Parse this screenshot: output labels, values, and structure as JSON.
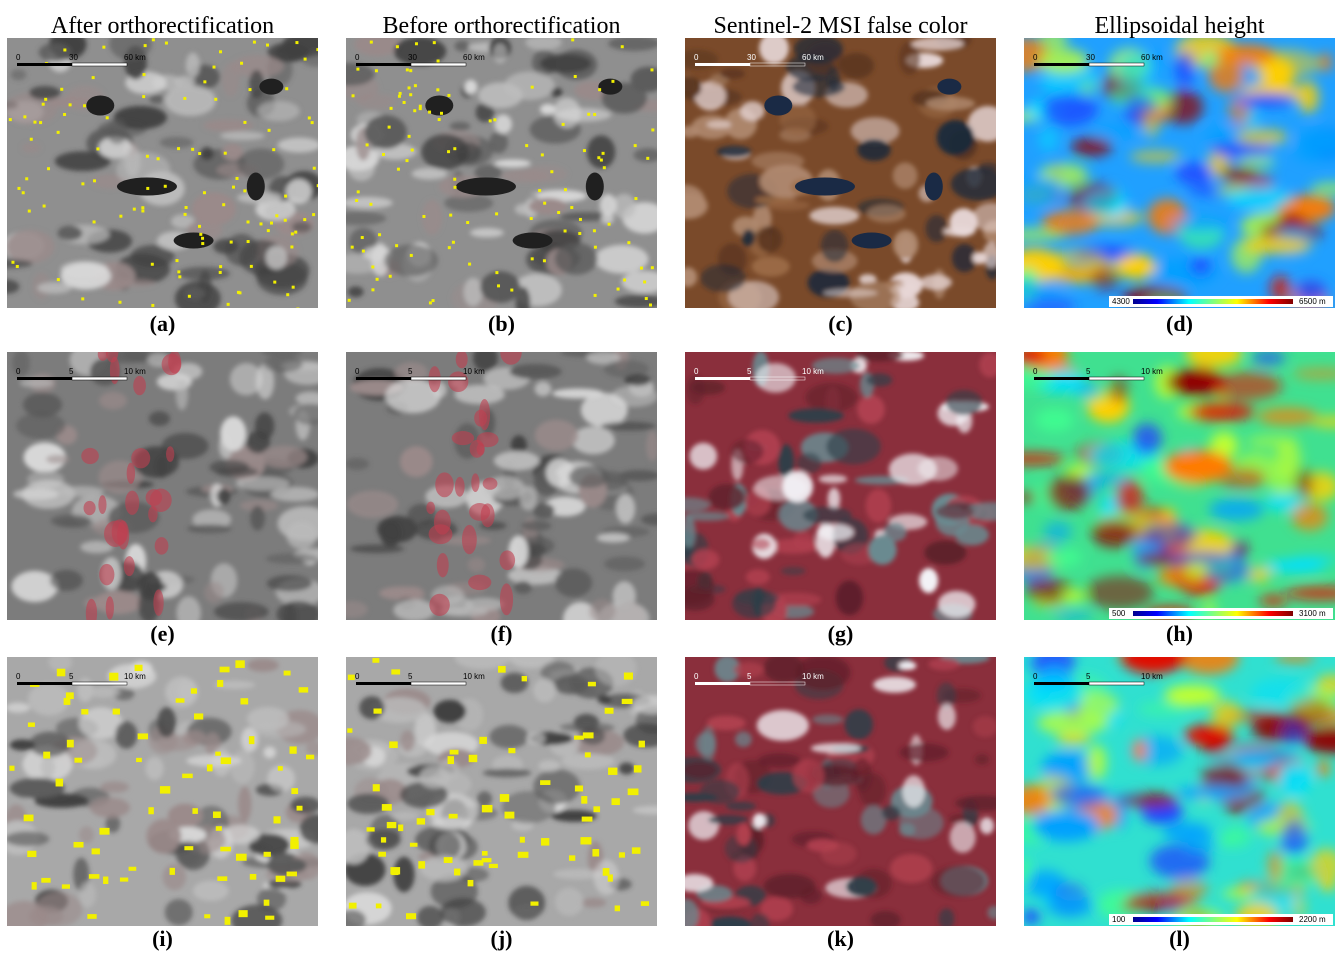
{
  "headers": [
    "After orthorectification",
    "Before orthorectification",
    "Sentinel-2 MSI false color",
    "Ellipsoidal height"
  ],
  "panels": [
    {
      "caption": "(a)",
      "scale": [
        "0",
        "30",
        "60 km"
      ]
    },
    {
      "caption": "(b)",
      "scale": [
        "0",
        "30",
        "60 km"
      ]
    },
    {
      "caption": "(c)",
      "scale": [
        "0",
        "30",
        "60 km"
      ]
    },
    {
      "caption": "(d)",
      "scale": [
        "0",
        "30",
        "60 km"
      ],
      "colorbar": [
        "4300",
        "6500 m"
      ]
    },
    {
      "caption": "(e)",
      "scale": [
        "0",
        "5",
        "10 km"
      ]
    },
    {
      "caption": "(f)",
      "scale": [
        "0",
        "5",
        "10 km"
      ]
    },
    {
      "caption": "(g)",
      "scale": [
        "0",
        "5",
        "10 km"
      ]
    },
    {
      "caption": "(h)",
      "scale": [
        "0",
        "5",
        "10 km"
      ],
      "colorbar": [
        "500",
        "3100 m"
      ]
    },
    {
      "caption": "(i)",
      "scale": [
        "0",
        "5",
        "10 km"
      ]
    },
    {
      "caption": "(j)",
      "scale": [
        "0",
        "5",
        "10 km"
      ]
    },
    {
      "caption": "(k)",
      "scale": [
        "0",
        "5",
        "10 km"
      ]
    },
    {
      "caption": "(l)",
      "scale": [
        "0",
        "5",
        "10 km"
      ],
      "colorbar": [
        "100",
        "2200 m"
      ]
    }
  ]
}
